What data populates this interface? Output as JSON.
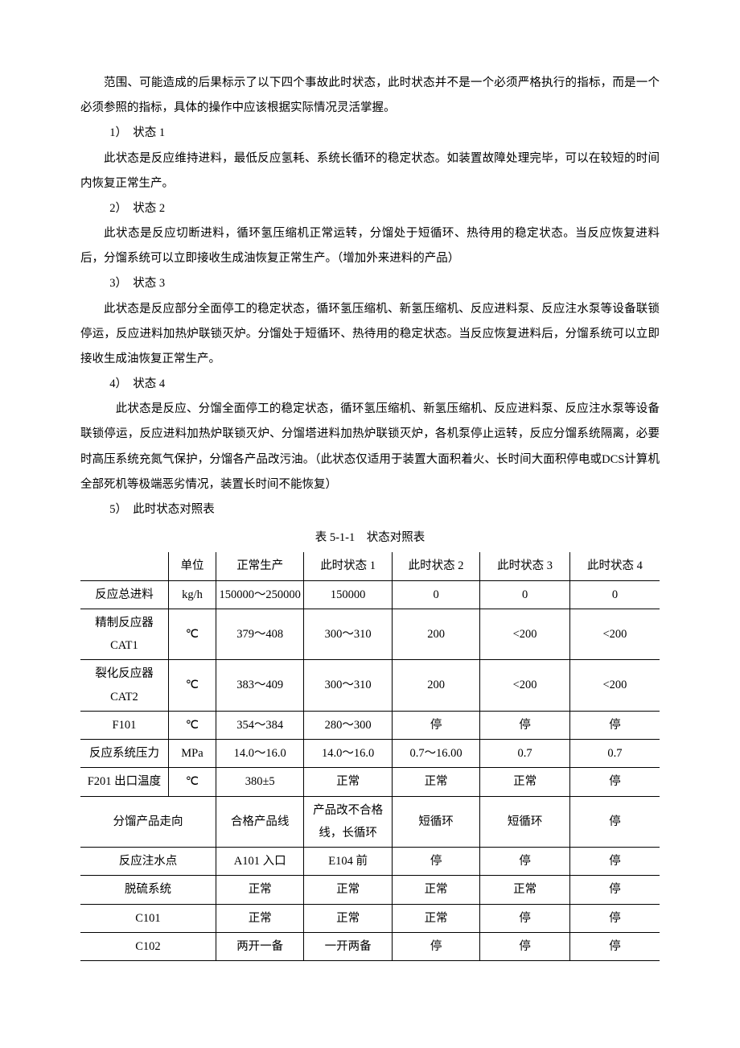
{
  "paragraphs": {
    "intro": "范围、可能造成的后果标示了以下四个事故此时状态，此时状态并不是一个必须严格执行的指标，而是一个必须参照的指标，具体的操作中应该根据实际情况灵活掌握。",
    "s1_head": "1）　状态 1",
    "s1_body": "此状态是反应维持进料，最低反应氢耗、系统长循环的稳定状态。如装置故障处理完毕，可以在较短的时间内恢复正常生产。",
    "s2_head": "2）　状态 2",
    "s2_body": "此状态是反应切断进料，循环氢压缩机正常运转，分馏处于短循环、热待用的稳定状态。当反应恢复进料后，分馏系统可以立即接收生成油恢复正常生产。（增加外来进料的产品）",
    "s3_head": "3）　状态  3",
    "s3_body": "此状态是反应部分全面停工的稳定状态，循环氢压缩机、新氢压缩机、反应进料泵、反应注水泵等设备联锁停运，反应进料加热炉联锁灭炉。分馏处于短循环、热待用的稳定状态。当反应恢复进料后，分馏系统可以立即接收生成油恢复正常生产。",
    "s4_head": "4）　状态 4",
    "s4_body": "　此状态是反应、分馏全面停工的稳定状态，循环氢压缩机、新氢压缩机、反应进料泵、反应注水泵等设备联锁停运，反应进料加热炉联锁灭炉、分馏塔进料加热炉联锁灭炉，各机泵停止运转，反应分馏系统隔离，必要时高压系统充氮气保护，分馏各产品改污油。（此状态仅适用于装置大面积着火、长时间大面积停电或DCS计算机全部死机等极端恶劣情况，装置长时间不能恢复）",
    "s5_head": "5）　此时状态对照表"
  },
  "table": {
    "caption": "表 5-1-1　状态对照表",
    "colwidths": [
      "15.2%",
      "8.2%",
      "15.2%",
      "15.2%",
      "15.2%",
      "15.5%",
      "15.5%"
    ],
    "header": [
      "",
      "单位",
      "正常生产",
      "此时状态 1",
      "此时状态 2",
      "此时状态 3",
      "此时状态 4"
    ],
    "rows": [
      {
        "label": "反应总进料",
        "unit": "kg/h",
        "c": [
          "150000～250000",
          "150000",
          "0",
          "0",
          "0"
        ]
      },
      {
        "label": "精制反应器CAT1",
        "unit": "℃",
        "c": [
          "379～408",
          "300～310",
          "200",
          "<200",
          "<200"
        ]
      },
      {
        "label": "裂化反应器CAT2",
        "unit": "℃",
        "c": [
          "383～409",
          "300～310",
          "200",
          "<200",
          "<200"
        ]
      },
      {
        "label": "F101",
        "unit": "℃",
        "c": [
          "354～384",
          "280～300",
          "停",
          "停",
          "停"
        ]
      },
      {
        "label": "反应系统压力",
        "unit": "MPa",
        "c": [
          "14.0～16.0",
          "14.0～16.0",
          "0.7～16.00",
          "0.7",
          "0.7"
        ]
      },
      {
        "label": "F201 出口温度",
        "unit": "℃",
        "c": [
          "380±5",
          "正常",
          "正常",
          "正常",
          "停"
        ]
      }
    ],
    "merged": [
      {
        "label": "分馏产品走向",
        "c": [
          "合格产品线",
          "产品改不合格线，长循环",
          "短循环",
          "短循环",
          "停"
        ]
      },
      {
        "label": "反应注水点",
        "c": [
          "A101 入口",
          "E104 前",
          "停",
          "停",
          "停"
        ]
      },
      {
        "label": "脱硫系统",
        "c": [
          "正常",
          "正常",
          "正常",
          "正常",
          "停"
        ]
      },
      {
        "label": "C101",
        "c": [
          "正常",
          "正常",
          "正常",
          "停",
          "停"
        ]
      },
      {
        "label": "C102",
        "c": [
          "两开一备",
          "一开两备",
          "停",
          "停",
          "停"
        ]
      }
    ]
  }
}
